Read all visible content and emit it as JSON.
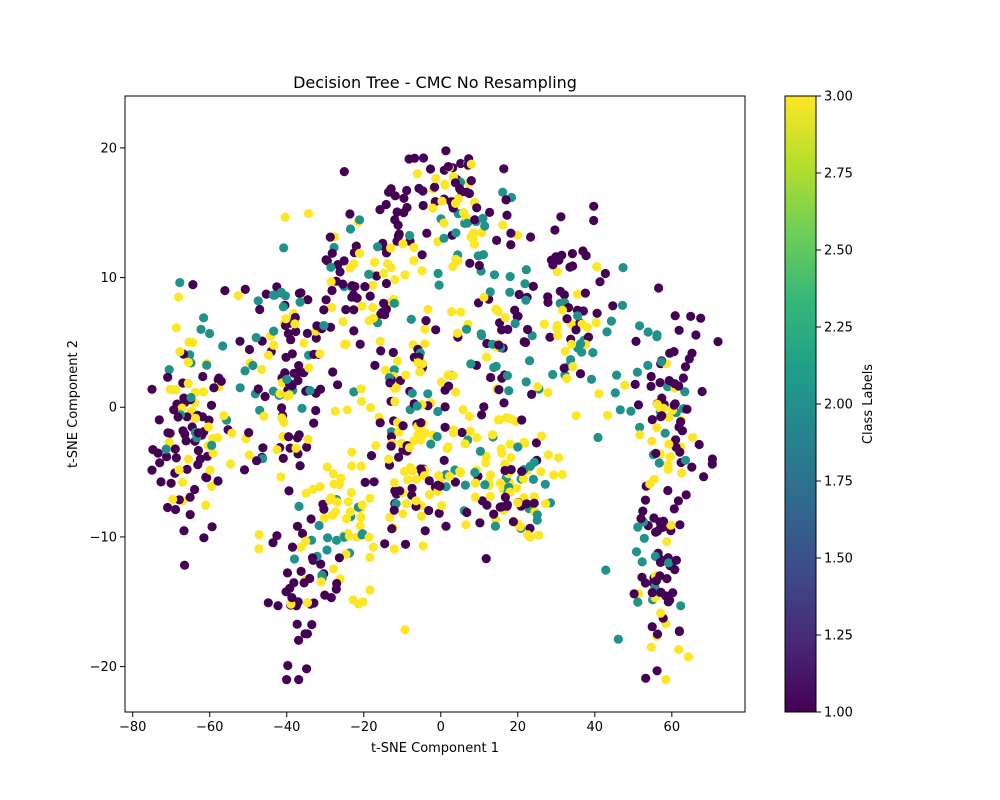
{
  "chart_data": {
    "type": "scatter",
    "title": "Decision Tree - CMC No Resampling",
    "xlabel": "t-SNE Component 1",
    "ylabel": "t-SNE Component 2",
    "xlim": [
      -82,
      79
    ],
    "ylim": [
      -23.5,
      24
    ],
    "xticks": [
      -80,
      -60,
      -40,
      -20,
      0,
      20,
      40,
      60
    ],
    "yticks": [
      -20,
      -10,
      0,
      10,
      20
    ],
    "grid": false,
    "colorbar": {
      "label": "Class Labels",
      "range": [
        1.0,
        3.0
      ],
      "colormap": "viridis",
      "ticks": [
        "1.00",
        "1.25",
        "1.50",
        "1.75",
        "2.00",
        "2.25",
        "2.50",
        "2.75",
        "3.00"
      ]
    },
    "class_colors": {
      "1": "#440154",
      "2": "#21918c",
      "3": "#fde725"
    },
    "clusters": [
      {
        "label": 1,
        "center": [
          -65,
          -3
        ],
        "spread": [
          7,
          5
        ],
        "count": 60
      },
      {
        "label": 3,
        "center": [
          -65,
          -2
        ],
        "spread": [
          7,
          6
        ],
        "count": 35
      },
      {
        "label": 2,
        "center": [
          -62,
          2
        ],
        "spread": [
          7,
          5
        ],
        "count": 15
      },
      {
        "label": 1,
        "center": [
          -40,
          3
        ],
        "spread": [
          10,
          8
        ],
        "count": 70
      },
      {
        "label": 3,
        "center": [
          -40,
          2
        ],
        "spread": [
          10,
          8
        ],
        "count": 45
      },
      {
        "label": 2,
        "center": [
          -42,
          5
        ],
        "spread": [
          10,
          6
        ],
        "count": 25
      },
      {
        "label": 1,
        "center": [
          -35,
          -14
        ],
        "spread": [
          7,
          4
        ],
        "count": 40
      },
      {
        "label": 3,
        "center": [
          -25,
          -10
        ],
        "spread": [
          10,
          4
        ],
        "count": 45
      },
      {
        "label": 2,
        "center": [
          -28,
          -10
        ],
        "spread": [
          9,
          4
        ],
        "count": 18
      },
      {
        "label": 1,
        "center": [
          -22,
          9
        ],
        "spread": [
          10,
          4
        ],
        "count": 35
      },
      {
        "label": 3,
        "center": [
          -18,
          9
        ],
        "spread": [
          10,
          4
        ],
        "count": 25
      },
      {
        "label": 2,
        "center": [
          -18,
          10
        ],
        "spread": [
          10,
          3
        ],
        "count": 12
      },
      {
        "label": 1,
        "center": [
          -10,
          14
        ],
        "spread": [
          8,
          3
        ],
        "count": 25
      },
      {
        "label": 3,
        "center": [
          -5,
          2
        ],
        "spread": [
          10,
          4
        ],
        "count": 40
      },
      {
        "label": 1,
        "center": [
          -8,
          0
        ],
        "spread": [
          10,
          4
        ],
        "count": 30
      },
      {
        "label": 2,
        "center": [
          -8,
          1
        ],
        "spread": [
          9,
          3
        ],
        "count": 14
      },
      {
        "label": 1,
        "center": [
          -8,
          -7
        ],
        "spread": [
          8,
          3
        ],
        "count": 25
      },
      {
        "label": 3,
        "center": [
          -8,
          -6
        ],
        "spread": [
          8,
          3
        ],
        "count": 30
      },
      {
        "label": 1,
        "center": [
          5,
          16
        ],
        "spread": [
          10,
          4
        ],
        "count": 35
      },
      {
        "label": 3,
        "center": [
          5,
          15
        ],
        "spread": [
          10,
          4
        ],
        "count": 30
      },
      {
        "label": 2,
        "center": [
          8,
          14
        ],
        "spread": [
          10,
          4
        ],
        "count": 20
      },
      {
        "label": 1,
        "center": [
          15,
          5
        ],
        "spread": [
          8,
          6
        ],
        "count": 35
      },
      {
        "label": 3,
        "center": [
          15,
          3
        ],
        "spread": [
          10,
          6
        ],
        "count": 25
      },
      {
        "label": 2,
        "center": [
          15,
          6
        ],
        "spread": [
          10,
          6
        ],
        "count": 20
      },
      {
        "label": 3,
        "center": [
          15,
          -6
        ],
        "spread": [
          10,
          3
        ],
        "count": 45
      },
      {
        "label": 2,
        "center": [
          15,
          -6
        ],
        "spread": [
          10,
          3
        ],
        "count": 25
      },
      {
        "label": 1,
        "center": [
          15,
          -7
        ],
        "spread": [
          10,
          3
        ],
        "count": 25
      },
      {
        "label": 1,
        "center": [
          35,
          8
        ],
        "spread": [
          8,
          5
        ],
        "count": 35
      },
      {
        "label": 3,
        "center": [
          35,
          5
        ],
        "spread": [
          8,
          5
        ],
        "count": 20
      },
      {
        "label": 2,
        "center": [
          38,
          5
        ],
        "spread": [
          8,
          4
        ],
        "count": 20
      },
      {
        "label": 1,
        "center": [
          60,
          0
        ],
        "spread": [
          7,
          6
        ],
        "count": 55
      },
      {
        "label": 3,
        "center": [
          58,
          -2
        ],
        "spread": [
          7,
          5
        ],
        "count": 25
      },
      {
        "label": 2,
        "center": [
          55,
          0
        ],
        "spread": [
          7,
          5
        ],
        "count": 20
      },
      {
        "label": 1,
        "center": [
          58,
          -13
        ],
        "spread": [
          5,
          4
        ],
        "count": 40
      },
      {
        "label": 2,
        "center": [
          56,
          -13
        ],
        "spread": [
          5,
          4
        ],
        "count": 14
      },
      {
        "label": 3,
        "center": [
          57,
          -17
        ],
        "spread": [
          4,
          3
        ],
        "count": 10
      }
    ]
  }
}
